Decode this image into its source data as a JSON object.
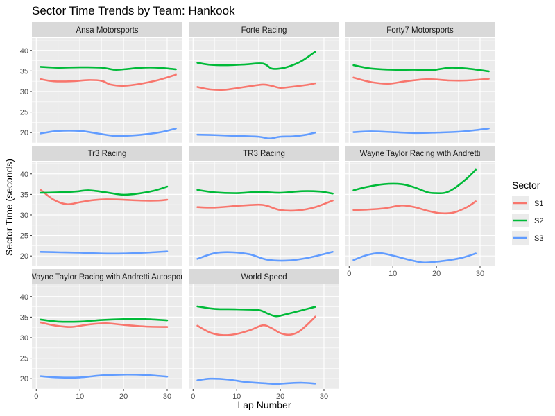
{
  "chart_data": {
    "type": "line",
    "title": "Sector Time Trends by Team: Hankook",
    "xlabel": "Lap Number",
    "ylabel": "Sector Time (seconds)",
    "xlim": [
      -1,
      33.5
    ],
    "ylim": [
      17.5,
      43
    ],
    "x_ticks": [
      0,
      10,
      20,
      30
    ],
    "y_ticks": [
      20,
      25,
      30,
      35,
      40
    ],
    "grid": true,
    "facet_layout": "3x3 wrap",
    "legend": {
      "title": "Sector",
      "position": "right",
      "entries": [
        {
          "name": "S1",
          "color": "#F8766D"
        },
        {
          "name": "S2",
          "color": "#00BA38"
        },
        {
          "name": "S3",
          "color": "#619CFF"
        }
      ]
    },
    "panels": [
      {
        "label": "Ansa Motorsports",
        "series": [
          {
            "name": "S1",
            "points": [
              [
                1,
                33.0
              ],
              [
                4,
                32.5
              ],
              [
                8,
                32.5
              ],
              [
                12,
                32.8
              ],
              [
                15,
                32.6
              ],
              [
                17,
                31.7
              ],
              [
                20,
                31.4
              ],
              [
                24,
                31.9
              ],
              [
                28,
                32.8
              ],
              [
                32,
                34.1
              ]
            ]
          },
          {
            "name": "S2",
            "points": [
              [
                1,
                36.0
              ],
              [
                5,
                35.8
              ],
              [
                10,
                35.9
              ],
              [
                15,
                35.8
              ],
              [
                18,
                35.3
              ],
              [
                21,
                35.5
              ],
              [
                24,
                35.8
              ],
              [
                28,
                35.8
              ],
              [
                32,
                35.4
              ]
            ]
          },
          {
            "name": "S3",
            "points": [
              [
                1,
                19.8
              ],
              [
                5,
                20.4
              ],
              [
                10,
                20.4
              ],
              [
                14,
                19.8
              ],
              [
                18,
                19.2
              ],
              [
                22,
                19.3
              ],
              [
                26,
                19.7
              ],
              [
                29,
                20.2
              ],
              [
                32,
                21.0
              ]
            ]
          }
        ]
      },
      {
        "label": "Forte Racing",
        "series": [
          {
            "name": "S1",
            "points": [
              [
                1,
                31.1
              ],
              [
                4,
                30.5
              ],
              [
                7,
                30.4
              ],
              [
                10,
                30.8
              ],
              [
                13,
                31.3
              ],
              [
                16,
                31.7
              ],
              [
                18,
                31.4
              ],
              [
                20,
                30.9
              ],
              [
                23,
                31.2
              ],
              [
                26,
                31.6
              ],
              [
                28,
                32.0
              ]
            ]
          },
          {
            "name": "S2",
            "points": [
              [
                1,
                37.0
              ],
              [
                4,
                36.5
              ],
              [
                8,
                36.4
              ],
              [
                12,
                36.6
              ],
              [
                16,
                36.8
              ],
              [
                18,
                35.6
              ],
              [
                20,
                35.6
              ],
              [
                22,
                36.1
              ],
              [
                25,
                37.5
              ],
              [
                28,
                39.7
              ]
            ]
          },
          {
            "name": "S3",
            "points": [
              [
                1,
                19.5
              ],
              [
                5,
                19.4
              ],
              [
                10,
                19.2
              ],
              [
                15,
                19.0
              ],
              [
                17,
                18.6
              ],
              [
                18,
                18.6
              ],
              [
                20,
                19.0
              ],
              [
                23,
                19.1
              ],
              [
                26,
                19.5
              ],
              [
                28,
                20.0
              ]
            ]
          }
        ]
      },
      {
        "label": "Forty7 Motorsports",
        "series": [
          {
            "name": "S1",
            "points": [
              [
                1,
                33.4
              ],
              [
                5,
                32.3
              ],
              [
                9,
                31.9
              ],
              [
                13,
                32.5
              ],
              [
                18,
                33.0
              ],
              [
                23,
                32.7
              ],
              [
                27,
                32.7
              ],
              [
                32,
                33.1
              ]
            ]
          },
          {
            "name": "S2",
            "points": [
              [
                1,
                36.4
              ],
              [
                5,
                35.6
              ],
              [
                10,
                35.3
              ],
              [
                15,
                35.3
              ],
              [
                19,
                35.2
              ],
              [
                23,
                35.8
              ],
              [
                27,
                35.6
              ],
              [
                32,
                34.9
              ]
            ]
          },
          {
            "name": "S3",
            "points": [
              [
                1,
                20.1
              ],
              [
                5,
                20.3
              ],
              [
                10,
                20.1
              ],
              [
                15,
                19.9
              ],
              [
                20,
                20.0
              ],
              [
                25,
                20.2
              ],
              [
                29,
                20.6
              ],
              [
                32,
                21.0
              ]
            ]
          }
        ]
      },
      {
        "label": "Tr3 Racing",
        "series": [
          {
            "name": "S1",
            "points": [
              [
                1,
                36.1
              ],
              [
                4,
                33.7
              ],
              [
                7,
                32.6
              ],
              [
                10,
                33.1
              ],
              [
                13,
                33.6
              ],
              [
                16,
                33.8
              ],
              [
                20,
                33.7
              ],
              [
                24,
                33.5
              ],
              [
                28,
                33.5
              ],
              [
                30,
                33.7
              ]
            ]
          },
          {
            "name": "S2",
            "points": [
              [
                1,
                35.4
              ],
              [
                5,
                35.5
              ],
              [
                9,
                35.7
              ],
              [
                12,
                36.0
              ],
              [
                16,
                35.5
              ],
              [
                20,
                34.9
              ],
              [
                24,
                35.3
              ],
              [
                27,
                35.9
              ],
              [
                30,
                36.9
              ]
            ]
          },
          {
            "name": "S3",
            "points": [
              [
                1,
                21.0
              ],
              [
                5,
                20.9
              ],
              [
                10,
                20.8
              ],
              [
                15,
                20.6
              ],
              [
                20,
                20.6
              ],
              [
                25,
                20.8
              ],
              [
                30,
                21.1
              ]
            ]
          }
        ]
      },
      {
        "label": "TR3 Racing",
        "series": [
          {
            "name": "S1",
            "points": [
              [
                1,
                31.9
              ],
              [
                5,
                31.8
              ],
              [
                10,
                32.2
              ],
              [
                15,
                32.5
              ],
              [
                17,
                32.2
              ],
              [
                20,
                31.2
              ],
              [
                24,
                31.1
              ],
              [
                28,
                31.9
              ],
              [
                32,
                33.5
              ]
            ]
          },
          {
            "name": "S2",
            "points": [
              [
                1,
                36.1
              ],
              [
                5,
                35.5
              ],
              [
                10,
                35.3
              ],
              [
                15,
                35.6
              ],
              [
                20,
                35.4
              ],
              [
                25,
                35.8
              ],
              [
                29,
                35.7
              ],
              [
                32,
                35.2
              ]
            ]
          },
          {
            "name": "S3",
            "points": [
              [
                1,
                19.3
              ],
              [
                5,
                20.7
              ],
              [
                9,
                20.9
              ],
              [
                13,
                20.4
              ],
              [
                17,
                19.1
              ],
              [
                22,
                18.9
              ],
              [
                27,
                19.7
              ],
              [
                32,
                21.0
              ]
            ]
          }
        ]
      },
      {
        "label": "Wayne Taylor Racing with Andretti",
        "series": [
          {
            "name": "S1",
            "points": [
              [
                1,
                31.2
              ],
              [
                4,
                31.3
              ],
              [
                8,
                31.6
              ],
              [
                12,
                32.3
              ],
              [
                15,
                31.9
              ],
              [
                18,
                31.0
              ],
              [
                21,
                30.4
              ],
              [
                24,
                30.6
              ],
              [
                27,
                31.9
              ],
              [
                29,
                33.3
              ]
            ]
          },
          {
            "name": "S2",
            "points": [
              [
                1,
                36.0
              ],
              [
                4,
                36.8
              ],
              [
                8,
                37.5
              ],
              [
                12,
                37.5
              ],
              [
                15,
                36.7
              ],
              [
                18,
                35.5
              ],
              [
                20,
                35.3
              ],
              [
                22,
                35.4
              ],
              [
                24,
                36.4
              ],
              [
                27,
                38.9
              ],
              [
                29,
                41.0
              ]
            ]
          },
          {
            "name": "S3",
            "points": [
              [
                1,
                19.0
              ],
              [
                4,
                20.2
              ],
              [
                7,
                20.7
              ],
              [
                10,
                20.1
              ],
              [
                14,
                19.0
              ],
              [
                17,
                18.4
              ],
              [
                20,
                18.6
              ],
              [
                23,
                19.0
              ],
              [
                26,
                19.6
              ],
              [
                29,
                20.6
              ]
            ]
          }
        ]
      },
      {
        "label": "Wayne Taylor Racing with Andretti Autosport",
        "series": [
          {
            "name": "S1",
            "points": [
              [
                1,
                33.7
              ],
              [
                4,
                33.0
              ],
              [
                8,
                32.6
              ],
              [
                12,
                33.2
              ],
              [
                16,
                33.5
              ],
              [
                20,
                33.1
              ],
              [
                25,
                32.7
              ],
              [
                30,
                32.6
              ]
            ]
          },
          {
            "name": "S2",
            "points": [
              [
                1,
                34.4
              ],
              [
                5,
                33.9
              ],
              [
                10,
                33.9
              ],
              [
                15,
                34.3
              ],
              [
                20,
                34.5
              ],
              [
                25,
                34.5
              ],
              [
                30,
                34.2
              ]
            ]
          },
          {
            "name": "S3",
            "points": [
              [
                1,
                20.6
              ],
              [
                5,
                20.3
              ],
              [
                10,
                20.3
              ],
              [
                15,
                20.8
              ],
              [
                20,
                21.0
              ],
              [
                25,
                20.9
              ],
              [
                30,
                20.5
              ]
            ]
          }
        ]
      },
      {
        "label": "World Speed",
        "series": [
          {
            "name": "S1",
            "points": [
              [
                1,
                32.9
              ],
              [
                4,
                31.2
              ],
              [
                7,
                30.6
              ],
              [
                10,
                30.9
              ],
              [
                13,
                31.8
              ],
              [
                16,
                33.0
              ],
              [
                18,
                32.3
              ],
              [
                20,
                31.1
              ],
              [
                22,
                30.7
              ],
              [
                24,
                31.3
              ],
              [
                26,
                33.0
              ],
              [
                28,
                35.1
              ]
            ]
          },
          {
            "name": "S2",
            "points": [
              [
                1,
                37.6
              ],
              [
                5,
                37.0
              ],
              [
                10,
                36.9
              ],
              [
                15,
                36.7
              ],
              [
                17,
                35.9
              ],
              [
                19,
                35.2
              ],
              [
                21,
                35.6
              ],
              [
                24,
                36.4
              ],
              [
                28,
                37.5
              ]
            ]
          },
          {
            "name": "S3",
            "points": [
              [
                1,
                19.6
              ],
              [
                4,
                20.0
              ],
              [
                8,
                19.8
              ],
              [
                12,
                19.2
              ],
              [
                16,
                18.9
              ],
              [
                19,
                18.7
              ],
              [
                22,
                18.9
              ],
              [
                25,
                19.0
              ],
              [
                28,
                18.8
              ]
            ]
          }
        ]
      }
    ]
  }
}
